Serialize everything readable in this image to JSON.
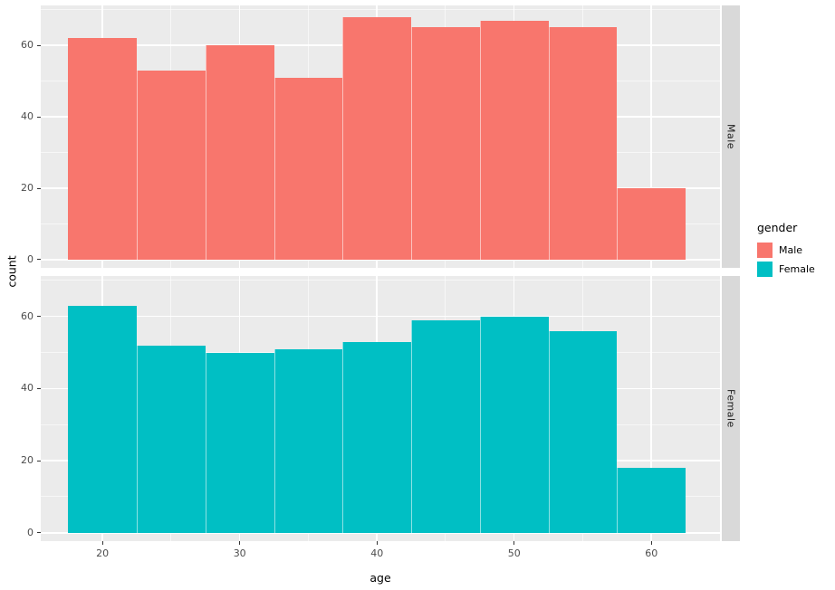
{
  "chart_data": {
    "type": "bar",
    "subtype": "faceted-histogram",
    "title": "",
    "xlabel": "age",
    "ylabel": "count",
    "x_domain": [
      15.5,
      65
    ],
    "y_domain": [
      -2.3,
      71.2
    ],
    "x_ticks": [
      20,
      30,
      40,
      50,
      60
    ],
    "y_ticks": [
      0,
      20,
      40,
      60
    ],
    "x_minor": [
      15,
      25,
      35,
      45,
      55,
      65
    ],
    "y_minor": [
      10,
      30,
      50,
      70
    ],
    "bin_edges": [
      17.5,
      22.5,
      27.5,
      32.5,
      37.5,
      42.5,
      47.5,
      52.5,
      57.5,
      62.5
    ],
    "grid": true,
    "legend_position": "right",
    "facets": [
      {
        "label": "Male",
        "color": "#F8766D",
        "counts": [
          62,
          53,
          60,
          51,
          68,
          65,
          67,
          65,
          20
        ]
      },
      {
        "label": "Female",
        "color": "#00BFC4",
        "counts": [
          63,
          52,
          50,
          51,
          53,
          59,
          60,
          56,
          18
        ]
      }
    ],
    "legend": {
      "title": "gender",
      "entries": [
        {
          "label": "Male",
          "color": "#F8766D"
        },
        {
          "label": "Female",
          "color": "#00BFC4"
        }
      ]
    },
    "theme": {
      "panel_bg": "#EBEBEB",
      "strip_bg": "#D9D9D9",
      "grid_color": "#FFFFFF",
      "axis_text_color": "#4D4D4D"
    }
  }
}
